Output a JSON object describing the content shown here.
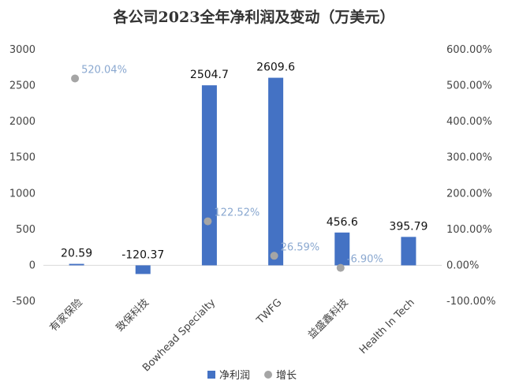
{
  "chart_data": {
    "type": "bar",
    "title": "各公司2023全年净利润及变动（万美元）",
    "categories": [
      "有家保险",
      "致保科技",
      "Bowhead Specialty",
      "TWFG",
      "益盛鑫科技",
      "Health In Tech"
    ],
    "series": [
      {
        "name": "净利润",
        "kind": "bar",
        "axis": "left",
        "color": "#4472c4",
        "values": [
          20.59,
          -120.37,
          2504.7,
          2609.6,
          456.6,
          395.79
        ],
        "labels": [
          "20.59",
          "-120.37",
          "2504.7",
          "2609.6",
          "456.6",
          "395.79"
        ]
      },
      {
        "name": "增长",
        "kind": "scatter",
        "axis": "right",
        "color": "#a5a5a5",
        "values": [
          520.04,
          null,
          122.52,
          26.59,
          -6.9,
          null
        ],
        "labels": [
          "520.04%",
          null,
          "122.52%",
          "26.59%",
          "-6.90%",
          null
        ]
      }
    ],
    "y_left": {
      "min": -500,
      "max": 3000,
      "ticks": [
        -500,
        0,
        500,
        1000,
        1500,
        2000,
        2500,
        3000
      ],
      "tick_labels": [
        "-500",
        "0",
        "500",
        "1000",
        "1500",
        "2000",
        "2500",
        "3000"
      ]
    },
    "y_right": {
      "min": -100,
      "max": 600,
      "ticks": [
        -100,
        0,
        100,
        200,
        300,
        400,
        500,
        600
      ],
      "tick_labels": [
        "-100.00%",
        "0.00%",
        "100.00%",
        "200.00%",
        "300.00%",
        "400.00%",
        "500.00%",
        "600.00%"
      ]
    },
    "grid": false,
    "legend": "bottom"
  }
}
